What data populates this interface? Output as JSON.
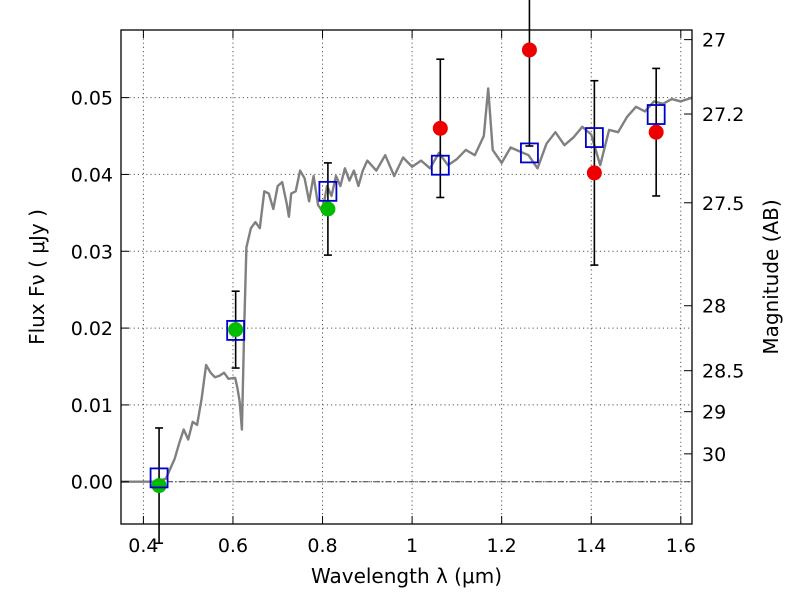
{
  "chart_data": {
    "type": "scatter",
    "xlabel": "Wavelength  λ (μm)",
    "ylabel": "Flux  Fν  ( μJy )",
    "y2label": "Magnitude (AB)",
    "xlim": [
      0.35,
      1.625
    ],
    "ylim": [
      -0.0055,
      0.0588
    ],
    "grid": true,
    "x_ticks": [
      {
        "v": 0.4,
        "label": "0.4"
      },
      {
        "v": 0.6,
        "label": "0.6"
      },
      {
        "v": 0.8,
        "label": "0.8"
      },
      {
        "v": 1.0,
        "label": "1"
      },
      {
        "v": 1.2,
        "label": "1.2"
      },
      {
        "v": 1.4,
        "label": "1.4"
      },
      {
        "v": 1.6,
        "label": "1.6"
      }
    ],
    "y_ticks": [
      {
        "v": 0.0,
        "label": "0.00"
      },
      {
        "v": 0.01,
        "label": "0.01"
      },
      {
        "v": 0.02,
        "label": "0.02"
      },
      {
        "v": 0.03,
        "label": "0.03"
      },
      {
        "v": 0.04,
        "label": "0.04"
      },
      {
        "v": 0.05,
        "label": "0.05"
      }
    ],
    "y2_ticks": [
      {
        "mag": 27,
        "label": "27"
      },
      {
        "mag": 27.2,
        "label": "27.2"
      },
      {
        "mag": 27.5,
        "label": "27.5"
      },
      {
        "mag": 28,
        "label": "28"
      },
      {
        "mag": 28.5,
        "label": "28.5"
      },
      {
        "mag": 29,
        "label": "29"
      },
      {
        "mag": 30,
        "label": "30"
      }
    ],
    "model_spectrum": {
      "color": "#808080",
      "x": [
        0.35,
        0.43,
        0.45,
        0.47,
        0.48,
        0.49,
        0.5,
        0.51,
        0.52,
        0.53,
        0.54,
        0.55,
        0.56,
        0.57,
        0.58,
        0.59,
        0.6,
        0.605,
        0.61,
        0.615,
        0.62,
        0.625,
        0.63,
        0.64,
        0.65,
        0.66,
        0.67,
        0.68,
        0.69,
        0.7,
        0.71,
        0.72,
        0.725,
        0.73,
        0.74,
        0.75,
        0.76,
        0.77,
        0.78,
        0.79,
        0.8,
        0.81,
        0.82,
        0.83,
        0.84,
        0.85,
        0.86,
        0.87,
        0.88,
        0.89,
        0.9,
        0.92,
        0.94,
        0.96,
        0.98,
        1.0,
        1.02,
        1.04,
        1.06,
        1.08,
        1.1,
        1.12,
        1.14,
        1.16,
        1.17,
        1.18,
        1.2,
        1.22,
        1.24,
        1.26,
        1.28,
        1.3,
        1.32,
        1.34,
        1.36,
        1.38,
        1.4,
        1.42,
        1.44,
        1.46,
        1.48,
        1.5,
        1.52,
        1.54,
        1.56,
        1.58,
        1.6,
        1.625
      ],
      "y": [
        0.0,
        0.0,
        0.0004,
        0.003,
        0.005,
        0.0068,
        0.0055,
        0.0078,
        0.0074,
        0.0108,
        0.0152,
        0.0142,
        0.0136,
        0.0138,
        0.0142,
        0.0134,
        0.0135,
        0.0135,
        0.0122,
        0.0104,
        0.0068,
        0.02,
        0.0305,
        0.033,
        0.0338,
        0.033,
        0.0378,
        0.0375,
        0.0355,
        0.0385,
        0.039,
        0.0362,
        0.0345,
        0.0375,
        0.0378,
        0.0405,
        0.0395,
        0.0365,
        0.0398,
        0.036,
        0.0352,
        0.0385,
        0.0372,
        0.0398,
        0.0385,
        0.0408,
        0.0392,
        0.0405,
        0.0385,
        0.0405,
        0.0418,
        0.0405,
        0.0425,
        0.0398,
        0.0422,
        0.041,
        0.0418,
        0.0408,
        0.0428,
        0.0412,
        0.042,
        0.0432,
        0.0425,
        0.045,
        0.0512,
        0.0432,
        0.0415,
        0.0435,
        0.043,
        0.0425,
        0.0408,
        0.044,
        0.0455,
        0.0438,
        0.0448,
        0.0462,
        0.0452,
        0.0412,
        0.0458,
        0.0455,
        0.0475,
        0.0488,
        0.0482,
        0.0495,
        0.0492,
        0.0498,
        0.0495,
        0.05
      ]
    },
    "series": [
      {
        "name": "",
        "marker": "square-open",
        "color": "#0000cc",
        "x": [
          0.435,
          0.606,
          0.812,
          1.063,
          1.262,
          1.407,
          1.545
        ],
        "y": [
          0.0005,
          0.0197,
          0.0378,
          0.0412,
          0.0428,
          0.0448,
          0.0478
        ]
      },
      {
        "name": "",
        "marker": "circle",
        "color": "#00bb00",
        "x": [
          0.435,
          0.606,
          0.812
        ],
        "y": [
          -0.0005,
          0.0198,
          0.0355
        ],
        "err": [
          0.0075,
          0.005,
          0.006
        ]
      },
      {
        "name": "",
        "marker": "circle",
        "color": "#ee0000",
        "x": [
          1.063,
          1.262,
          1.407,
          1.545
        ],
        "y": [
          0.046,
          0.0562,
          0.0402,
          0.0455
        ],
        "err": [
          0.009,
          0.0125,
          0.012,
          0.0083
        ]
      }
    ]
  }
}
